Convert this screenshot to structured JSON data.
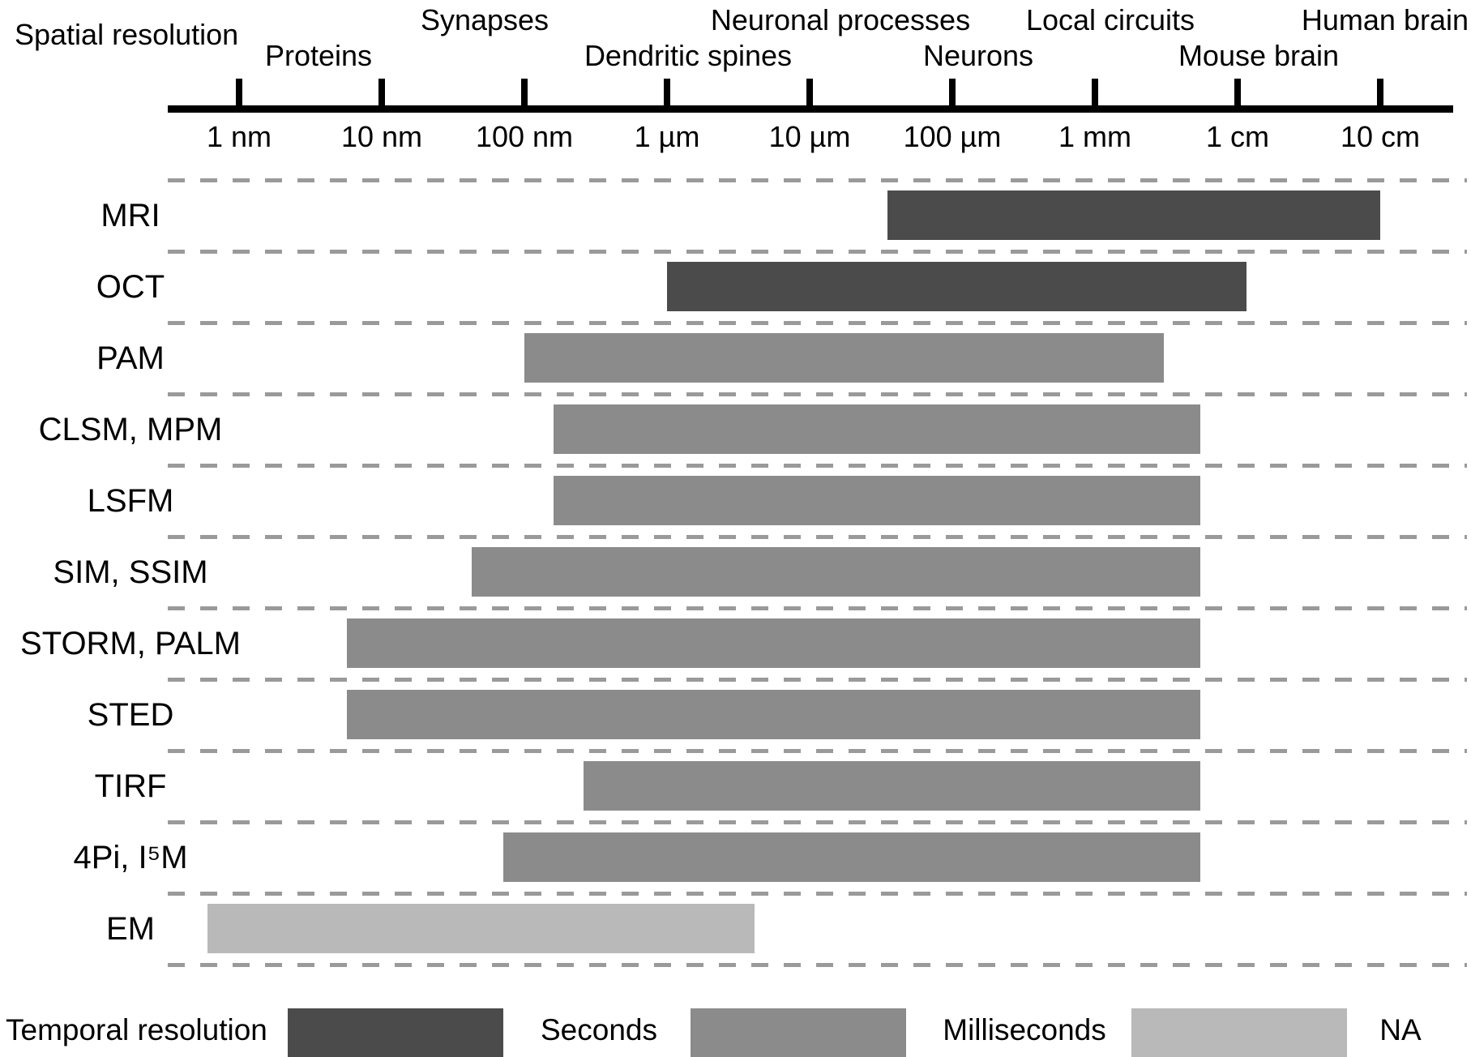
{
  "chart_data": {
    "type": "bar",
    "variant": "horizontal-range-bars-log-axis",
    "title": "Spatial resolution",
    "x_axis": {
      "scale": "log",
      "unit": "nm",
      "range_nm": [
        0.3,
        300000000
      ],
      "ticks": [
        {
          "label": "1 nm",
          "nm": 1
        },
        {
          "label": "10 nm",
          "nm": 10
        },
        {
          "label": "100 nm",
          "nm": 100
        },
        {
          "label": "1 µm",
          "nm": 1000
        },
        {
          "label": "10 µm",
          "nm": 10000
        },
        {
          "label": "100 µm",
          "nm": 100000
        },
        {
          "label": "1 mm",
          "nm": 1000000
        },
        {
          "label": "1 cm",
          "nm": 10000000
        },
        {
          "label": "10 cm",
          "nm": 100000000
        }
      ]
    },
    "structure_annotations": {
      "top_row": [
        {
          "text": "Synapses",
          "nm": 45,
          "align": "center"
        },
        {
          "text": "Neuronal processes",
          "nm": 14000,
          "align": "center"
        },
        {
          "text": "Local circuits",
          "nm": 1100000,
          "align": "center"
        },
        {
          "text": "Human brain",
          "nm": 100000000,
          "align": "right"
        }
      ],
      "bottom_row": [
        {
          "text": "Proteins",
          "nm": 3.1,
          "align": "center"
        },
        {
          "text": "Dendritic spines",
          "nm": 1200,
          "align": "center"
        },
        {
          "text": "Neurons",
          "nm": 130000,
          "align": "center"
        },
        {
          "text": "Mouse brain",
          "nm": 12000000,
          "align": "center"
        }
      ]
    },
    "series": [
      {
        "technique": "MRI",
        "temporal_resolution": "seconds",
        "min_nm": 35000,
        "max_nm": 100000000,
        "range_label": "≈35 µm – 10 cm"
      },
      {
        "technique": "OCT",
        "temporal_resolution": "seconds",
        "min_nm": 1000,
        "max_nm": 11500000,
        "range_label": "1 µm – ≈1 cm"
      },
      {
        "technique": "PAM",
        "temporal_resolution": "milliseconds",
        "min_nm": 100,
        "max_nm": 3050000,
        "range_label": "100 nm – ≈3 mm"
      },
      {
        "technique": "CLSM, MPM",
        "temporal_resolution": "milliseconds",
        "min_nm": 160,
        "max_nm": 5450000,
        "range_label": "≈160 nm – ≈5 mm"
      },
      {
        "technique": "LSFM",
        "temporal_resolution": "milliseconds",
        "min_nm": 160,
        "max_nm": 5450000,
        "range_label": "≈160 nm – ≈5 mm"
      },
      {
        "technique": "SIM, SSIM",
        "temporal_resolution": "milliseconds",
        "min_nm": 43,
        "max_nm": 5450000,
        "range_label": "≈40 nm – ≈5 mm"
      },
      {
        "technique": "STORM, PALM",
        "temporal_resolution": "milliseconds",
        "min_nm": 5.7,
        "max_nm": 5450000,
        "range_label": "≈5 nm – ≈5 mm"
      },
      {
        "technique": "STED",
        "temporal_resolution": "milliseconds",
        "min_nm": 5.7,
        "max_nm": 5450000,
        "range_label": "≈5 nm – ≈5 mm"
      },
      {
        "technique": "TIRF",
        "temporal_resolution": "milliseconds",
        "min_nm": 260,
        "max_nm": 5450000,
        "range_label": "≈250 nm – ≈5 mm"
      },
      {
        "technique": "4Pi, I⁵M",
        "temporal_resolution": "milliseconds",
        "min_nm": 71,
        "max_nm": 5450000,
        "range_label": "≈70 nm – ≈5 mm"
      },
      {
        "technique": "EM",
        "temporal_resolution": "NA",
        "min_nm": 0.6,
        "max_nm": 4100,
        "range_label": "≈0.6 nm – ≈4 µm"
      }
    ],
    "legend": {
      "title": "Temporal resolution",
      "items": [
        {
          "label": "Seconds",
          "category": "seconds",
          "color": "#4b4b4b"
        },
        {
          "label": "Milliseconds",
          "category": "milliseconds",
          "color": "#8b8b8b"
        },
        {
          "label": "NA",
          "category": "NA",
          "color": "#b9b9b9"
        }
      ]
    },
    "colors": {
      "seconds": "#4b4b4b",
      "milliseconds": "#8b8b8b",
      "NA": "#b9b9b9",
      "axis": "#000000",
      "dashed_separator": "#9a9a9a",
      "background": "#ffffff"
    },
    "grid": "dashed horizontal row separators",
    "legend_position": "bottom"
  }
}
